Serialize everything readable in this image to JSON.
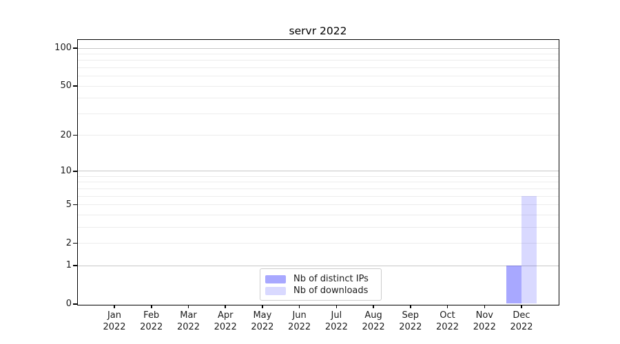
{
  "chart_data": {
    "type": "bar",
    "title": "servr 2022",
    "categories": [
      "Jan",
      "Feb",
      "Mar",
      "Apr",
      "May",
      "Jun",
      "Jul",
      "Aug",
      "Sep",
      "Oct",
      "Nov",
      "Dec"
    ],
    "x_year_label": "2022",
    "series": [
      {
        "name": "Nb of distinct IPs",
        "color": "rgba(0,0,255,0.34)",
        "values": [
          0,
          0,
          0,
          0,
          0,
          0,
          0,
          0,
          0,
          0,
          0,
          1
        ]
      },
      {
        "name": "Nb of downloads",
        "color": "rgba(0,0,255,0.15)",
        "values": [
          0,
          0,
          0,
          0,
          0,
          0,
          0,
          0,
          0,
          0,
          0,
          6
        ]
      }
    ],
    "yscale": "log1p",
    "ylim": [
      0,
      100
    ],
    "yticks": [
      0,
      1,
      2,
      5,
      10,
      20,
      50,
      100
    ],
    "major_grid_values": [
      1,
      10,
      100
    ],
    "minor_grid_values": [
      2,
      3,
      4,
      5,
      6,
      7,
      8,
      9,
      20,
      30,
      40,
      50,
      60,
      70,
      80,
      90
    ],
    "grid": true,
    "legend_position": "lower-center",
    "colors": {
      "bar_distinct_ips_flat": "#a8a8fc",
      "bar_downloads_flat": "#d9d9fb",
      "major_grid": "#c6c6c6",
      "minor_grid": "#ececec",
      "spine": "#000000",
      "text": "#1a1a1a"
    }
  }
}
